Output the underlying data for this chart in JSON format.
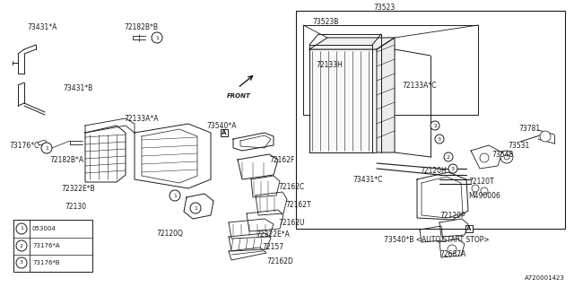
{
  "bg_color": "#ffffff",
  "line_color": "#1a1a1a",
  "fig_width": 6.4,
  "fig_height": 3.2,
  "dpi": 100,
  "diagram_number": "A720001423",
  "legend_items": [
    {
      "num": "1",
      "code": "053004"
    },
    {
      "num": "2",
      "code": "73176*A"
    },
    {
      "num": "3",
      "code": "73176*B"
    }
  ]
}
